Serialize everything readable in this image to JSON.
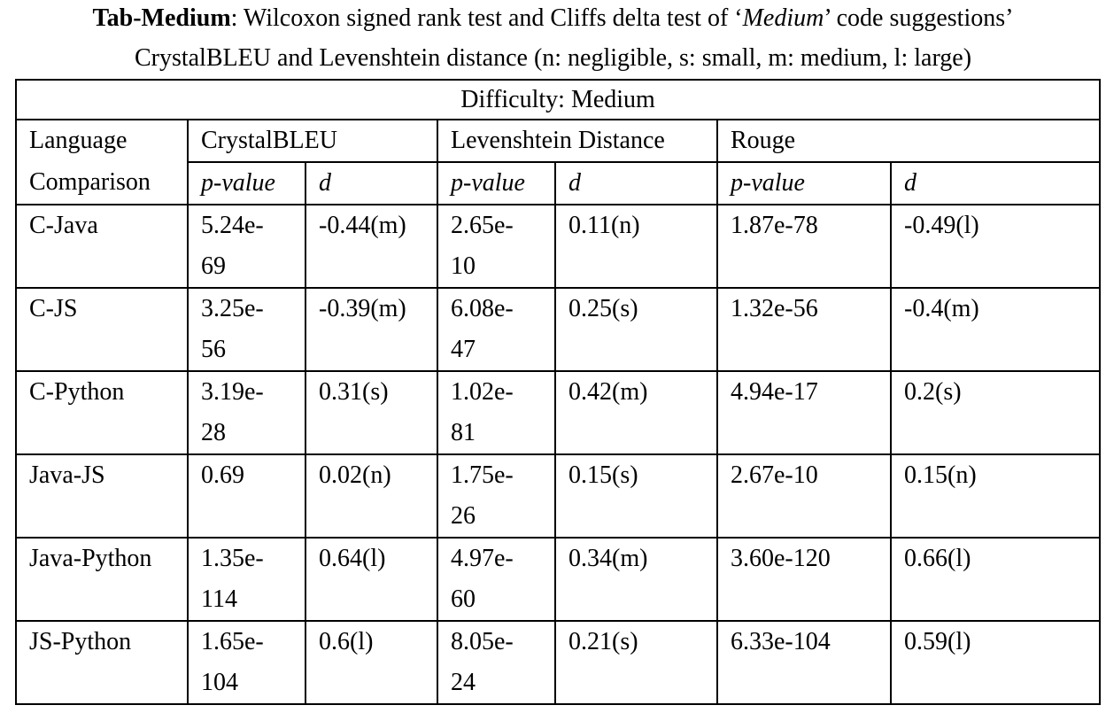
{
  "caption": {
    "tab_label": "Tab-Medium",
    "line1_prefix": ": Wilcoxon signed rank test and Cliffs delta test of ‘",
    "line1_italic": "Medium",
    "line1_suffix": "’ code suggestions’",
    "line2": "CrystalBLEU and Levenshtein distance (n: negligible, s: small, m: medium, l: large)"
  },
  "table": {
    "difficulty_header": "Difficulty: Medium",
    "language_header_line1": "Language",
    "language_header_line2": "Comparison",
    "metrics": [
      "CrystalBLEU",
      "Levenshtein Distance",
      "Rouge"
    ],
    "sub_headers": {
      "p_value": "p-value",
      "d": "d"
    },
    "rows": [
      {
        "comparison": "C-Java",
        "crystalbleu_p": "5.24e-69",
        "crystalbleu_d": "-0.44(m)",
        "levenshtein_p": "2.65e-10",
        "levenshtein_d": "0.11(n)",
        "rouge_p": "1.87e-78",
        "rouge_d": "-0.49(l)"
      },
      {
        "comparison": "C-JS",
        "crystalbleu_p": "3.25e-56",
        "crystalbleu_d": "-0.39(m)",
        "levenshtein_p": "6.08e-47",
        "levenshtein_d": "0.25(s)",
        "rouge_p": "1.32e-56",
        "rouge_d": "-0.4(m)"
      },
      {
        "comparison": "C-Python",
        "crystalbleu_p": "3.19e-28",
        "crystalbleu_d": "0.31(s)",
        "levenshtein_p": "1.02e-81",
        "levenshtein_d": "0.42(m)",
        "rouge_p": "4.94e-17",
        "rouge_d": "0.2(s)"
      },
      {
        "comparison": "Java-JS",
        "crystalbleu_p": "0.69",
        "crystalbleu_d": "0.02(n)",
        "levenshtein_p": "1.75e-26",
        "levenshtein_d": "0.15(s)",
        "rouge_p": "2.67e-10",
        "rouge_d": "0.15(n)"
      },
      {
        "comparison": "Java-Python",
        "crystalbleu_p": "1.35e-114",
        "crystalbleu_d": "0.64(l)",
        "levenshtein_p": "4.97e-60",
        "levenshtein_d": "0.34(m)",
        "rouge_p": "3.60e-120",
        "rouge_d": "0.66(l)"
      },
      {
        "comparison": "JS-Python",
        "crystalbleu_p": "1.65e-104",
        "crystalbleu_d": "0.6(l)",
        "levenshtein_p": "8.05e-24",
        "levenshtein_d": "0.21(s)",
        "rouge_p": "6.33e-104",
        "rouge_d": "0.59(l)"
      }
    ]
  }
}
